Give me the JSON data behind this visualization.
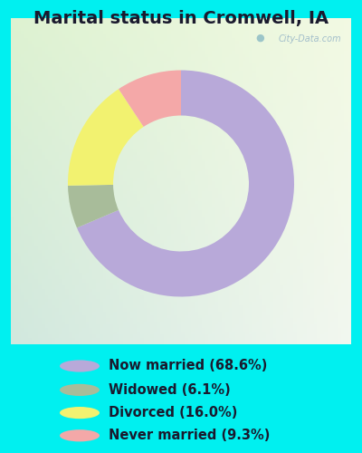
{
  "title": "Marital status in Cromwell, IA",
  "title_fontsize": 14,
  "slices": [
    68.6,
    6.1,
    16.0,
    9.3
  ],
  "labels": [
    "Now married (68.6%)",
    "Widowed (6.1%)",
    "Divorced (16.0%)",
    "Never married (9.3%)"
  ],
  "colors": [
    "#b8a9d9",
    "#a8bc9a",
    "#f2f270",
    "#f4a8a8"
  ],
  "donut_outer": 1.0,
  "donut_inner": 0.6,
  "start_angle": 90,
  "bg_color": "#00f0f0",
  "watermark": "City-Data.com",
  "legend_fontsize": 10.5,
  "chart_box_color": "#e8f5ee"
}
